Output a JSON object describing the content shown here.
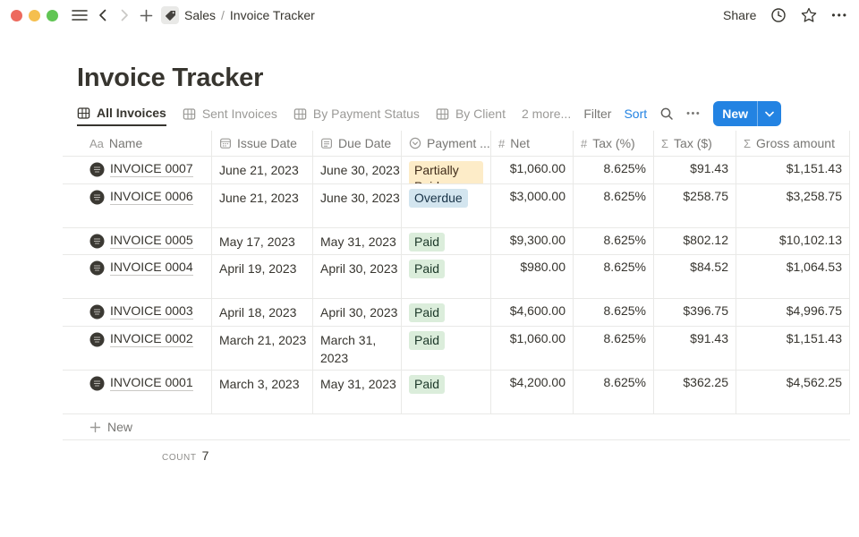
{
  "window": {
    "breadcrumb": {
      "workspace_page": "Sales",
      "separator": "/",
      "current_page": "Invoice Tracker"
    },
    "share_label": "Share",
    "more_icon": "•••"
  },
  "page": {
    "title": "Invoice Tracker"
  },
  "toolbar": {
    "tabs": [
      {
        "label": "All Invoices",
        "active": true
      },
      {
        "label": "Sent Invoices",
        "active": false
      },
      {
        "label": "By Payment Status",
        "active": false
      },
      {
        "label": "By Client",
        "active": false
      }
    ],
    "more_views_label": "2 more...",
    "filter_label": "Filter",
    "sort_label": "Sort",
    "more_options_icon": "•••",
    "new_button_label": "New"
  },
  "table": {
    "columns": [
      {
        "label": "Name",
        "icon": "text-icon"
      },
      {
        "label": "Issue Date",
        "icon": "calendar-icon"
      },
      {
        "label": "Due Date",
        "icon": "date-icon"
      },
      {
        "label": "Payment ...",
        "icon": "select-icon"
      },
      {
        "label": "Net",
        "icon": "number-icon"
      },
      {
        "label": "Tax (%)",
        "icon": "number-icon"
      },
      {
        "label": "Tax ($)",
        "icon": "formula-icon"
      },
      {
        "label": "Gross amount",
        "icon": "formula-icon"
      }
    ],
    "rows": [
      {
        "name": "INVOICE 0007",
        "issue_date": "June 21, 2023",
        "due_date": "June 30, 2023",
        "payment_status": "Partially Paid",
        "status_color": "yellow",
        "net": "$1,060.00",
        "tax_pct": "8.625%",
        "tax_usd": "$91.43",
        "gross": "$1,151.43",
        "height": 31,
        "due_wrap": false
      },
      {
        "name": "INVOICE 0006",
        "issue_date": "June 21, 2023",
        "due_date": "June 30, 2023",
        "payment_status": "Overdue",
        "status_color": "blue",
        "net": "$3,000.00",
        "tax_pct": "8.625%",
        "tax_usd": "$258.75",
        "gross": "$3,258.75",
        "height": 49,
        "due_wrap": false
      },
      {
        "name": "INVOICE 0005",
        "issue_date": "May 17, 2023",
        "due_date": "May 31, 2023",
        "payment_status": "Paid",
        "status_color": "green",
        "net": "$9,300.00",
        "tax_pct": "8.625%",
        "tax_usd": "$802.12",
        "gross": "$10,102.13",
        "height": 30,
        "due_wrap": false
      },
      {
        "name": "INVOICE 0004",
        "issue_date": "April 19, 2023",
        "due_date": "April 30, 2023",
        "payment_status": "Paid",
        "status_color": "green",
        "net": "$980.00",
        "tax_pct": "8.625%",
        "tax_usd": "$84.52",
        "gross": "$1,064.53",
        "height": 49,
        "due_wrap": false
      },
      {
        "name": "INVOICE 0003",
        "issue_date": "April 18, 2023",
        "due_date": "April 30, 2023",
        "payment_status": "Paid",
        "status_color": "green",
        "net": "$4,600.00",
        "tax_pct": "8.625%",
        "tax_usd": "$396.75",
        "gross": "$4,996.75",
        "height": 31,
        "due_wrap": false
      },
      {
        "name": "INVOICE 0002",
        "issue_date": "March 21, 2023",
        "due_date": "March 31, 2023",
        "payment_status": "Paid",
        "status_color": "green",
        "net": "$1,060.00",
        "tax_pct": "8.625%",
        "tax_usd": "$91.43",
        "gross": "$1,151.43",
        "height": 49,
        "due_wrap": true
      },
      {
        "name": "INVOICE 0001",
        "issue_date": "March 3, 2023",
        "due_date": "May 31, 2023",
        "payment_status": "Paid",
        "status_color": "green",
        "net": "$4,200.00",
        "tax_pct": "8.625%",
        "tax_usd": "$362.25",
        "gross": "$4,562.25",
        "height": 49,
        "due_wrap": false
      }
    ],
    "new_row_label": "New",
    "count_label": "COUNT",
    "count_value": "7"
  },
  "colors": {
    "accent_blue": "#2383e2",
    "text_dark": "#37352f",
    "text_gray": "#787774",
    "border": "#e9e9e7",
    "badge_yellow_bg": "#fdecc8",
    "badge_yellow_text": "#402c1b",
    "badge_blue_bg": "#d3e5ef",
    "badge_blue_text": "#183347",
    "badge_green_bg": "#dbeddb",
    "badge_green_text": "#1c3829",
    "traffic_red": "#ed6a5e",
    "traffic_yellow": "#f5bf4f",
    "traffic_green": "#61c554"
  }
}
